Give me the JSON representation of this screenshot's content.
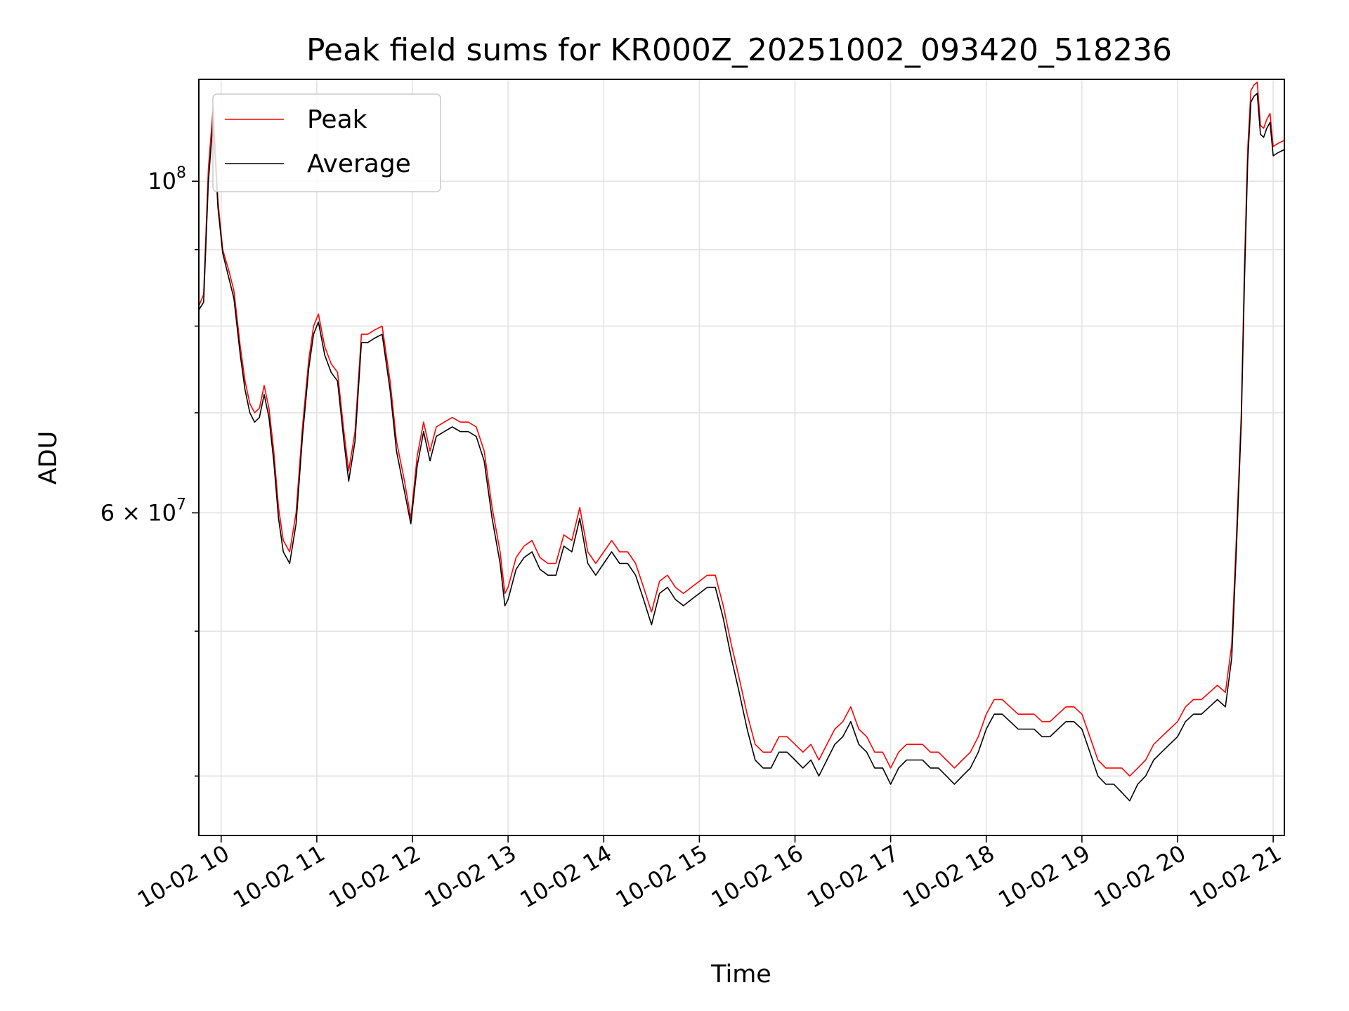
{
  "chart_data": {
    "type": "line",
    "title": "Peak field sums for KR000Z_20251002_093420_518236",
    "xlabel": "Time",
    "ylabel": "ADU",
    "xlim": [
      "2025-10-02 09:46",
      "2025-10-02 21:07"
    ],
    "ylim": [
      36500000,
      117000000
    ],
    "yscale": "log",
    "grid": true,
    "legend_position": "top-left",
    "x_ticks": [
      {
        "value": "2025-10-02 10:00",
        "label": "10-02 10"
      },
      {
        "value": "2025-10-02 11:00",
        "label": "10-02 11"
      },
      {
        "value": "2025-10-02 12:00",
        "label": "10-02 12"
      },
      {
        "value": "2025-10-02 13:00",
        "label": "10-02 13"
      },
      {
        "value": "2025-10-02 14:00",
        "label": "10-02 14"
      },
      {
        "value": "2025-10-02 15:00",
        "label": "10-02 15"
      },
      {
        "value": "2025-10-02 16:00",
        "label": "10-02 16"
      },
      {
        "value": "2025-10-02 17:00",
        "label": "10-02 17"
      },
      {
        "value": "2025-10-02 18:00",
        "label": "10-02 18"
      },
      {
        "value": "2025-10-02 19:00",
        "label": "10-02 19"
      },
      {
        "value": "2025-10-02 20:00",
        "label": "10-02 20"
      },
      {
        "value": "2025-10-02 21:00",
        "label": "10-02 21"
      }
    ],
    "y_major_ticks": [
      {
        "value": 60000000,
        "base": "6",
        "mantissa_sep": "×",
        "pow_base": "10",
        "exp": "7"
      },
      {
        "value": 100000000,
        "base": "",
        "mantissa_sep": "",
        "pow_base": "10",
        "exp": "8"
      }
    ],
    "y_minor_ticks": [
      40000000,
      50000000,
      70000000,
      80000000,
      90000000
    ],
    "series": [
      {
        "name": "Peak",
        "color": "#ff0000",
        "x": [
          "2025-10-02 09:46",
          "2025-10-02 09:49",
          "2025-10-02 09:52",
          "2025-10-02 09:55",
          "2025-10-02 09:58",
          "2025-10-02 10:01",
          "2025-10-02 10:05",
          "2025-10-02 10:08",
          "2025-10-02 10:12",
          "2025-10-02 10:15",
          "2025-10-02 10:18",
          "2025-10-02 10:21",
          "2025-10-02 10:24",
          "2025-10-02 10:27",
          "2025-10-02 10:30",
          "2025-10-02 10:33",
          "2025-10-02 10:36",
          "2025-10-02 10:39",
          "2025-10-02 10:43",
          "2025-10-02 10:47",
          "2025-10-02 10:51",
          "2025-10-02 10:55",
          "2025-10-02 10:58",
          "2025-10-02 11:01",
          "2025-10-02 11:05",
          "2025-10-02 11:09",
          "2025-10-02 11:13",
          "2025-10-02 11:17",
          "2025-10-02 11:20",
          "2025-10-02 11:24",
          "2025-10-02 11:28",
          "2025-10-02 11:32",
          "2025-10-02 11:36",
          "2025-10-02 11:41",
          "2025-10-02 11:46",
          "2025-10-02 11:50",
          "2025-10-02 11:55",
          "2025-10-02 11:59",
          "2025-10-02 12:03",
          "2025-10-02 12:07",
          "2025-10-02 12:11",
          "2025-10-02 12:15",
          "2025-10-02 12:20",
          "2025-10-02 12:25",
          "2025-10-02 12:30",
          "2025-10-02 12:35",
          "2025-10-02 12:40",
          "2025-10-02 12:45",
          "2025-10-02 12:50",
          "2025-10-02 12:55",
          "2025-10-02 12:58",
          "2025-10-02 13:00",
          "2025-10-02 13:05",
          "2025-10-02 13:10",
          "2025-10-02 13:15",
          "2025-10-02 13:20",
          "2025-10-02 13:25",
          "2025-10-02 13:30",
          "2025-10-02 13:35",
          "2025-10-02 13:40",
          "2025-10-02 13:45",
          "2025-10-02 13:50",
          "2025-10-02 13:55",
          "2025-10-02 14:00",
          "2025-10-02 14:05",
          "2025-10-02 14:10",
          "2025-10-02 14:15",
          "2025-10-02 14:20",
          "2025-10-02 14:25",
          "2025-10-02 14:30",
          "2025-10-02 14:35",
          "2025-10-02 14:40",
          "2025-10-02 14:45",
          "2025-10-02 14:50",
          "2025-10-02 14:55",
          "2025-10-02 15:00",
          "2025-10-02 15:05",
          "2025-10-02 15:10",
          "2025-10-02 15:15",
          "2025-10-02 15:20",
          "2025-10-02 15:25",
          "2025-10-02 15:30",
          "2025-10-02 15:35",
          "2025-10-02 15:40",
          "2025-10-02 15:45",
          "2025-10-02 15:50",
          "2025-10-02 15:55",
          "2025-10-02 16:00",
          "2025-10-02 16:05",
          "2025-10-02 16:10",
          "2025-10-02 16:15",
          "2025-10-02 16:20",
          "2025-10-02 16:25",
          "2025-10-02 16:30",
          "2025-10-02 16:35",
          "2025-10-02 16:40",
          "2025-10-02 16:45",
          "2025-10-02 16:50",
          "2025-10-02 16:55",
          "2025-10-02 17:00",
          "2025-10-02 17:05",
          "2025-10-02 17:10",
          "2025-10-02 17:15",
          "2025-10-02 17:20",
          "2025-10-02 17:25",
          "2025-10-02 17:30",
          "2025-10-02 17:35",
          "2025-10-02 17:40",
          "2025-10-02 17:45",
          "2025-10-02 17:50",
          "2025-10-02 17:55",
          "2025-10-02 18:00",
          "2025-10-02 18:05",
          "2025-10-02 18:10",
          "2025-10-02 18:15",
          "2025-10-02 18:20",
          "2025-10-02 18:25",
          "2025-10-02 18:30",
          "2025-10-02 18:35",
          "2025-10-02 18:40",
          "2025-10-02 18:45",
          "2025-10-02 18:50",
          "2025-10-02 18:55",
          "2025-10-02 19:00",
          "2025-10-02 19:05",
          "2025-10-02 19:10",
          "2025-10-02 19:15",
          "2025-10-02 19:20",
          "2025-10-02 19:25",
          "2025-10-02 19:30",
          "2025-10-02 19:35",
          "2025-10-02 19:40",
          "2025-10-02 19:45",
          "2025-10-02 19:50",
          "2025-10-02 19:55",
          "2025-10-02 20:00",
          "2025-10-02 20:05",
          "2025-10-02 20:10",
          "2025-10-02 20:15",
          "2025-10-02 20:20",
          "2025-10-02 20:25",
          "2025-10-02 20:30",
          "2025-10-02 20:34",
          "2025-10-02 20:37",
          "2025-10-02 20:40",
          "2025-10-02 20:42",
          "2025-10-02 20:44",
          "2025-10-02 20:46",
          "2025-10-02 20:48",
          "2025-10-02 20:50",
          "2025-10-02 20:52",
          "2025-10-02 20:54",
          "2025-10-02 20:56",
          "2025-10-02 20:58",
          "2025-10-02 21:00",
          "2025-10-02 21:03",
          "2025-10-02 21:07"
        ],
        "y": [
          82500000,
          84000000,
          102000000,
          112000000,
          97000000,
          90000000,
          87000000,
          84500000,
          77500000,
          73500000,
          71000000,
          70000000,
          70500000,
          73000000,
          70500000,
          66000000,
          60500000,
          57500000,
          56500000,
          60000000,
          68500000,
          76000000,
          80000000,
          81500000,
          77500000,
          75500000,
          74500000,
          68000000,
          64000000,
          68000000,
          79000000,
          79000000,
          79500000,
          80000000,
          73500000,
          67000000,
          63000000,
          59500000,
          65500000,
          69000000,
          66000000,
          68500000,
          69000000,
          69500000,
          69000000,
          69000000,
          68500000,
          66000000,
          60500000,
          56500000,
          53000000,
          53500000,
          56000000,
          57000000,
          57500000,
          56000000,
          55500000,
          55500000,
          58000000,
          57500000,
          60500000,
          56500000,
          55500000,
          56500000,
          57500000,
          56500000,
          56500000,
          55500000,
          53500000,
          51500000,
          54000000,
          54500000,
          53500000,
          53000000,
          53500000,
          54000000,
          54500000,
          54500000,
          52000000,
          49000000,
          46500000,
          44000000,
          42000000,
          41500000,
          41500000,
          42500000,
          42500000,
          42000000,
          41500000,
          42000000,
          41000000,
          42000000,
          43000000,
          43500000,
          44500000,
          43000000,
          42500000,
          41500000,
          41500000,
          40500000,
          41500000,
          42000000,
          42000000,
          42000000,
          41500000,
          41500000,
          41000000,
          40500000,
          41000000,
          41500000,
          42500000,
          44000000,
          45000000,
          45000000,
          44500000,
          44000000,
          44000000,
          44000000,
          43500000,
          43500000,
          44000000,
          44500000,
          44500000,
          44000000,
          42500000,
          41000000,
          40500000,
          40500000,
          40500000,
          40000000,
          40500000,
          41000000,
          42000000,
          42500000,
          43000000,
          43500000,
          44500000,
          45000000,
          45000000,
          45500000,
          46000000,
          45500000,
          49000000,
          58000000,
          70000000,
          88000000,
          105000000,
          115000000,
          116000000,
          116500000,
          109000000,
          108500000,
          110000000,
          111000000,
          105500000,
          106000000,
          106500000
        ],
        "line_width_note": ""
      },
      {
        "name": "Average",
        "color": "#000000",
        "x": [
          "2025-10-02 09:46",
          "2025-10-02 09:49",
          "2025-10-02 09:52",
          "2025-10-02 09:55",
          "2025-10-02 09:58",
          "2025-10-02 10:01",
          "2025-10-02 10:05",
          "2025-10-02 10:08",
          "2025-10-02 10:12",
          "2025-10-02 10:15",
          "2025-10-02 10:18",
          "2025-10-02 10:21",
          "2025-10-02 10:24",
          "2025-10-02 10:27",
          "2025-10-02 10:30",
          "2025-10-02 10:33",
          "2025-10-02 10:36",
          "2025-10-02 10:39",
          "2025-10-02 10:43",
          "2025-10-02 10:47",
          "2025-10-02 10:51",
          "2025-10-02 10:55",
          "2025-10-02 10:58",
          "2025-10-02 11:01",
          "2025-10-02 11:05",
          "2025-10-02 11:09",
          "2025-10-02 11:13",
          "2025-10-02 11:17",
          "2025-10-02 11:20",
          "2025-10-02 11:24",
          "2025-10-02 11:28",
          "2025-10-02 11:32",
          "2025-10-02 11:36",
          "2025-10-02 11:41",
          "2025-10-02 11:46",
          "2025-10-02 11:50",
          "2025-10-02 11:55",
          "2025-10-02 11:59",
          "2025-10-02 12:03",
          "2025-10-02 12:07",
          "2025-10-02 12:11",
          "2025-10-02 12:15",
          "2025-10-02 12:20",
          "2025-10-02 12:25",
          "2025-10-02 12:30",
          "2025-10-02 12:35",
          "2025-10-02 12:40",
          "2025-10-02 12:45",
          "2025-10-02 12:50",
          "2025-10-02 12:55",
          "2025-10-02 12:58",
          "2025-10-02 13:00",
          "2025-10-02 13:05",
          "2025-10-02 13:10",
          "2025-10-02 13:15",
          "2025-10-02 13:20",
          "2025-10-02 13:25",
          "2025-10-02 13:30",
          "2025-10-02 13:35",
          "2025-10-02 13:40",
          "2025-10-02 13:45",
          "2025-10-02 13:50",
          "2025-10-02 13:55",
          "2025-10-02 14:00",
          "2025-10-02 14:05",
          "2025-10-02 14:10",
          "2025-10-02 14:15",
          "2025-10-02 14:20",
          "2025-10-02 14:25",
          "2025-10-02 14:30",
          "2025-10-02 14:35",
          "2025-10-02 14:40",
          "2025-10-02 14:45",
          "2025-10-02 14:50",
          "2025-10-02 14:55",
          "2025-10-02 15:00",
          "2025-10-02 15:05",
          "2025-10-02 15:10",
          "2025-10-02 15:15",
          "2025-10-02 15:20",
          "2025-10-02 15:25",
          "2025-10-02 15:30",
          "2025-10-02 15:35",
          "2025-10-02 15:40",
          "2025-10-02 15:45",
          "2025-10-02 15:50",
          "2025-10-02 15:55",
          "2025-10-02 16:00",
          "2025-10-02 16:05",
          "2025-10-02 16:10",
          "2025-10-02 16:15",
          "2025-10-02 16:20",
          "2025-10-02 16:25",
          "2025-10-02 16:30",
          "2025-10-02 16:35",
          "2025-10-02 16:40",
          "2025-10-02 16:45",
          "2025-10-02 16:50",
          "2025-10-02 16:55",
          "2025-10-02 17:00",
          "2025-10-02 17:05",
          "2025-10-02 17:10",
          "2025-10-02 17:15",
          "2025-10-02 17:20",
          "2025-10-02 17:25",
          "2025-10-02 17:30",
          "2025-10-02 17:35",
          "2025-10-02 17:40",
          "2025-10-02 17:45",
          "2025-10-02 17:50",
          "2025-10-02 17:55",
          "2025-10-02 18:00",
          "2025-10-02 18:05",
          "2025-10-02 18:10",
          "2025-10-02 18:15",
          "2025-10-02 18:20",
          "2025-10-02 18:25",
          "2025-10-02 18:30",
          "2025-10-02 18:35",
          "2025-10-02 18:40",
          "2025-10-02 18:45",
          "2025-10-02 18:50",
          "2025-10-02 18:55",
          "2025-10-02 19:00",
          "2025-10-02 19:05",
          "2025-10-02 19:10",
          "2025-10-02 19:15",
          "2025-10-02 19:20",
          "2025-10-02 19:25",
          "2025-10-02 19:30",
          "2025-10-02 19:35",
          "2025-10-02 19:40",
          "2025-10-02 19:45",
          "2025-10-02 19:50",
          "2025-10-02 19:55",
          "2025-10-02 20:00",
          "2025-10-02 20:05",
          "2025-10-02 20:10",
          "2025-10-02 20:15",
          "2025-10-02 20:20",
          "2025-10-02 20:25",
          "2025-10-02 20:30",
          "2025-10-02 20:34",
          "2025-10-02 20:37",
          "2025-10-02 20:40",
          "2025-10-02 20:42",
          "2025-10-02 20:44",
          "2025-10-02 20:46",
          "2025-10-02 20:48",
          "2025-10-02 20:50",
          "2025-10-02 20:52",
          "2025-10-02 20:54",
          "2025-10-02 20:56",
          "2025-10-02 20:58",
          "2025-10-02 21:00",
          "2025-10-02 21:03",
          "2025-10-02 21:07"
        ],
        "y": [
          82000000,
          83000000,
          100000000,
          110000000,
          96000000,
          89500000,
          86000000,
          83500000,
          76500000,
          72500000,
          70000000,
          69000000,
          69500000,
          72000000,
          69500000,
          65000000,
          59500000,
          56500000,
          55500000,
          59000000,
          67500000,
          75000000,
          79000000,
          80500000,
          76500000,
          74500000,
          73500000,
          67000000,
          63000000,
          67000000,
          78000000,
          78000000,
          78500000,
          79000000,
          72500000,
          66000000,
          62000000,
          59000000,
          64500000,
          68000000,
          65000000,
          67500000,
          68000000,
          68500000,
          68000000,
          68000000,
          67500000,
          65000000,
          59500000,
          55500000,
          52000000,
          52500000,
          55000000,
          56000000,
          56500000,
          55000000,
          54500000,
          54500000,
          57000000,
          56500000,
          59500000,
          55500000,
          54500000,
          55500000,
          56500000,
          55500000,
          55500000,
          54500000,
          52500000,
          50500000,
          53000000,
          53500000,
          52500000,
          52000000,
          52500000,
          53000000,
          53500000,
          53500000,
          51000000,
          48000000,
          45500000,
          43000000,
          41000000,
          40500000,
          40500000,
          41500000,
          41500000,
          41000000,
          40500000,
          41000000,
          40000000,
          41000000,
          42000000,
          42500000,
          43500000,
          42000000,
          41500000,
          40500000,
          40500000,
          39500000,
          40500000,
          41000000,
          41000000,
          41000000,
          40500000,
          40500000,
          40000000,
          39500000,
          40000000,
          40500000,
          41500000,
          43000000,
          44000000,
          44000000,
          43500000,
          43000000,
          43000000,
          43000000,
          42500000,
          42500000,
          43000000,
          43500000,
          43500000,
          43000000,
          41500000,
          40000000,
          39500000,
          39500000,
          39000000,
          38500000,
          39500000,
          40000000,
          41000000,
          41500000,
          42000000,
          42500000,
          43500000,
          44000000,
          44000000,
          44500000,
          45000000,
          44500000,
          48000000,
          57000000,
          69000000,
          86000000,
          103000000,
          113000000,
          114000000,
          114500000,
          107500000,
          107000000,
          108500000,
          109500000,
          104000000,
          104500000,
          105000000
        ]
      }
    ]
  }
}
